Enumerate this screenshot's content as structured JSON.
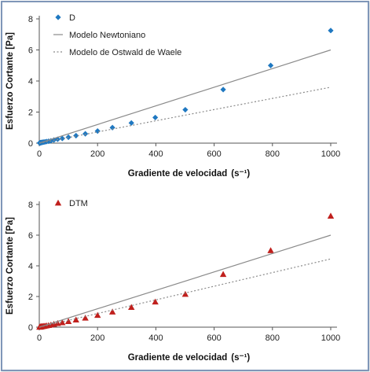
{
  "chart_data": [
    {
      "type": "scatter",
      "xlabel": "Gradiente de velocidad",
      "xlabel_unit": "(s⁻¹)",
      "ylabel": "Esfuerzo Cortante [Pa]",
      "xlim": [
        0,
        1000
      ],
      "ylim": [
        0,
        8
      ],
      "x_ticks": [
        "0",
        "200",
        "400",
        "600",
        "800",
        "1000"
      ],
      "y_ticks": [
        "0",
        "2",
        "4",
        "6",
        "8"
      ],
      "grid": false,
      "legend_placement": "top-left",
      "series": [
        {
          "name": "D",
          "kind": "scatter",
          "marker": "diamond",
          "color": "#1f78c1",
          "x": [
            1,
            2,
            3,
            4,
            5,
            6,
            8,
            10,
            13,
            16,
            20,
            25,
            32,
            40,
            50,
            63,
            79,
            100,
            126,
            158,
            200,
            251,
            316,
            398,
            501,
            631,
            794,
            1000
          ],
          "y": [
            0.01,
            0.015,
            0.02,
            0.025,
            0.03,
            0.035,
            0.04,
            0.05,
            0.06,
            0.07,
            0.08,
            0.1,
            0.12,
            0.15,
            0.2,
            0.25,
            0.3,
            0.38,
            0.48,
            0.6,
            0.78,
            1.0,
            1.3,
            1.65,
            2.15,
            3.45,
            5.0,
            7.25
          ]
        },
        {
          "name": "Modelo Newtoniano",
          "kind": "line",
          "style": "solid",
          "color": "#8a8a8a",
          "x": [
            0,
            1000
          ],
          "y": [
            0,
            6.0
          ]
        },
        {
          "name": "Modelo de Ostwald de Waele",
          "kind": "line",
          "style": "dotted",
          "color": "#8a8a8a",
          "x": [
            0,
            1000
          ],
          "y": [
            0,
            3.6
          ]
        }
      ]
    },
    {
      "type": "scatter",
      "xlabel": "Gradiente de velocidad",
      "xlabel_unit": "(s⁻¹)",
      "ylabel": "Esfuerzo Cortante [Pa]",
      "xlim": [
        0,
        1000
      ],
      "ylim": [
        0,
        8
      ],
      "x_ticks": [
        "0",
        "200",
        "400",
        "600",
        "800",
        "1000"
      ],
      "y_ticks": [
        "0",
        "2",
        "4",
        "6",
        "8"
      ],
      "grid": false,
      "legend_placement": "top-left",
      "series": [
        {
          "name": "DTM",
          "kind": "scatter",
          "marker": "triangle",
          "color": "#c0201d",
          "x": [
            1,
            2,
            3,
            4,
            5,
            6,
            8,
            10,
            13,
            16,
            20,
            25,
            32,
            40,
            50,
            63,
            79,
            100,
            126,
            158,
            200,
            251,
            316,
            398,
            501,
            631,
            794,
            1000
          ],
          "y": [
            0.01,
            0.015,
            0.02,
            0.025,
            0.03,
            0.035,
            0.04,
            0.05,
            0.06,
            0.07,
            0.08,
            0.1,
            0.12,
            0.15,
            0.2,
            0.25,
            0.3,
            0.38,
            0.48,
            0.6,
            0.78,
            1.0,
            1.3,
            1.65,
            2.15,
            3.45,
            5.0,
            7.25
          ]
        },
        {
          "kind": "line",
          "style": "solid",
          "color": "#8a8a8a",
          "x": [
            0,
            1000
          ],
          "y": [
            0,
            6.0
          ]
        },
        {
          "kind": "line",
          "style": "dotted",
          "color": "#8a8a8a",
          "x": [
            0,
            1000
          ],
          "y": [
            0,
            4.45
          ]
        }
      ]
    }
  ]
}
